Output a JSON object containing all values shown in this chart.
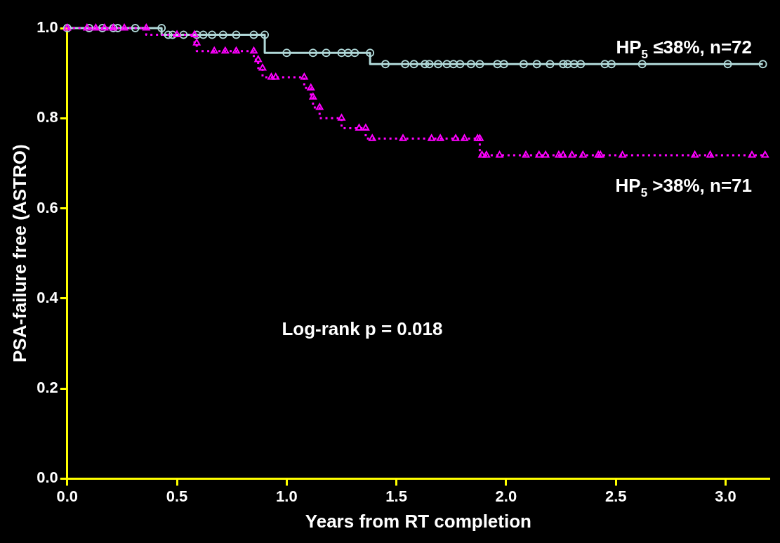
{
  "chart_data": {
    "type": "step",
    "xlabel": "Years from RT completion",
    "ylabel": "PSA-failure free (ASTRO)",
    "xlim": [
      0,
      3.2
    ],
    "xticks": [
      {
        "value": 0,
        "label": "0.0"
      },
      {
        "value": 0.5,
        "label": "0.5"
      },
      {
        "value": 1,
        "label": "1.0"
      },
      {
        "value": 1.5,
        "label": "1.5"
      },
      {
        "value": 2,
        "label": "2.0"
      },
      {
        "value": 2.5,
        "label": "2.5"
      },
      {
        "value": 3,
        "label": "3.0"
      }
    ],
    "ylim": [
      0,
      1
    ],
    "yticks": [
      {
        "value": 0,
        "label": "0.0"
      },
      {
        "value": 0.2,
        "label": "0.2"
      },
      {
        "value": 0.4,
        "label": "0.4"
      },
      {
        "value": 0.6,
        "label": "0.6"
      },
      {
        "value": 0.8,
        "label": "0.8"
      },
      {
        "value": 1,
        "label": "1.0"
      }
    ],
    "grid": false,
    "legend": false,
    "annotations": [
      "Log-rank p = 0.018"
    ],
    "series": [
      {
        "name": "HP$_{5}$ ≤38%, n=72",
        "color": "#b0d8d8",
        "marker": "circle",
        "line_style": "solid",
        "x": [
          0,
          0.1,
          0.16,
          0.21,
          0.23,
          0.31,
          0.43,
          0.46,
          0.48,
          0.53,
          0.59,
          0.62,
          0.66,
          0.71,
          0.77,
          0.85,
          0.9,
          1.0,
          1.12,
          1.18,
          1.25,
          1.28,
          1.31,
          1.38,
          1.45,
          1.54,
          1.58,
          1.63,
          1.65,
          1.69,
          1.73,
          1.76,
          1.79,
          1.84,
          1.88,
          1.96,
          1.99,
          2.08,
          2.14,
          2.2,
          2.26,
          2.28,
          2.31,
          2.34,
          2.45,
          2.48,
          2.62,
          3.01,
          3.17
        ],
        "values": [
          1,
          1,
          1,
          1,
          1,
          1,
          1,
          0.985,
          0.985,
          0.985,
          0.985,
          0.985,
          0.985,
          0.985,
          0.985,
          0.985,
          0.985,
          0.945,
          0.945,
          0.945,
          0.945,
          0.945,
          0.945,
          0.945,
          0.92,
          0.92,
          0.92,
          0.92,
          0.92,
          0.92,
          0.92,
          0.92,
          0.92,
          0.92,
          0.92,
          0.92,
          0.92,
          0.92,
          0.92,
          0.92,
          0.92,
          0.92,
          0.92,
          0.92,
          0.92,
          0.92,
          0.92,
          0.92,
          0.92
        ]
      },
      {
        "name": "HP$_{5}$ >38%, n=71",
        "color": "#ff00ff",
        "marker": "triangle",
        "line_style": "dotted",
        "x": [
          0,
          0.09,
          0.13,
          0.17,
          0.21,
          0.26,
          0.36,
          0.5,
          0.58,
          0.59,
          0.67,
          0.72,
          0.77,
          0.85,
          0.87,
          0.89,
          0.93,
          0.95,
          1.08,
          1.11,
          1.12,
          1.15,
          1.25,
          1.33,
          1.36,
          1.39,
          1.53,
          1.66,
          1.7,
          1.77,
          1.81,
          1.87,
          1.88,
          1.89,
          1.91,
          1.97,
          2.09,
          2.15,
          2.18,
          2.24,
          2.26,
          2.3,
          2.35,
          2.42,
          2.43,
          2.53,
          2.86,
          2.93,
          3.12,
          3.18
        ],
        "values": [
          1,
          1,
          1,
          1,
          1,
          1,
          1,
          0.985,
          0.985,
          0.967,
          0.949,
          0.949,
          0.949,
          0.949,
          0.93,
          0.911,
          0.891,
          0.891,
          0.891,
          0.867,
          0.847,
          0.824,
          0.8,
          0.778,
          0.778,
          0.755,
          0.755,
          0.755,
          0.755,
          0.755,
          0.755,
          0.755,
          0.755,
          0.718,
          0.718,
          0.718,
          0.718,
          0.718,
          0.718,
          0.718,
          0.718,
          0.718,
          0.718,
          0.718,
          0.718,
          0.718,
          0.718,
          0.718,
          0.718,
          0.718
        ]
      }
    ]
  }
}
